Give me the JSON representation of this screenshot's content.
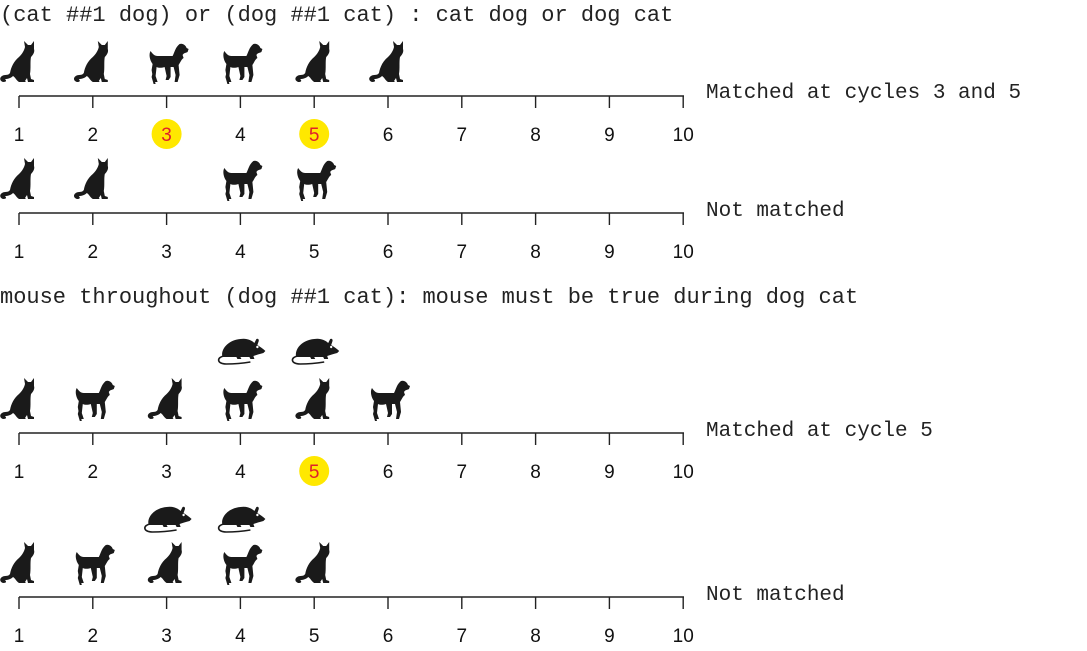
{
  "sections": [
    {
      "heading": "(cat ##1 dog) or (dog ##1 cat) : cat dog or dog cat",
      "timelines": [
        {
          "result": "Matched at cycles 3 and 5",
          "highlight": [
            3,
            5
          ],
          "rows": [
            [
              "cat",
              "cat",
              "dog",
              "dog",
              "cat",
              "cat",
              "",
              "",
              "",
              ""
            ]
          ]
        },
        {
          "result": "Not matched",
          "highlight": [],
          "rows": [
            [
              "cat",
              "cat",
              "",
              "dog",
              "dog",
              "",
              "",
              "",
              "",
              ""
            ]
          ]
        }
      ]
    },
    {
      "heading": "mouse throughout (dog ##1 cat): mouse must be true during dog cat",
      "timelines": [
        {
          "result": "Matched at cycle 5",
          "highlight": [
            5
          ],
          "rows": [
            [
              "",
              "",
              "",
              "mouse",
              "mouse",
              "",
              "",
              "",
              "",
              ""
            ],
            [
              "cat",
              "dog",
              "cat",
              "dog",
              "cat",
              "dog",
              "",
              "",
              "",
              ""
            ]
          ]
        },
        {
          "result": "Not matched",
          "highlight": [],
          "rows": [
            [
              "",
              "",
              "mouse",
              "mouse",
              "",
              "",
              "",
              "",
              "",
              ""
            ],
            [
              "cat",
              "dog",
              "cat",
              "dog",
              "cat",
              "",
              "",
              "",
              "",
              ""
            ]
          ]
        }
      ]
    }
  ],
  "ticks": [
    "1",
    "2",
    "3",
    "4",
    "5",
    "6",
    "7",
    "8",
    "9",
    "10"
  ],
  "icons": {
    "cat": "cat-icon",
    "dog": "dog-icon",
    "mouse": "mouse-icon"
  },
  "colors": {
    "highlight": "#ffe800",
    "highlight_text": "#e0202a",
    "silhouette": "#1a1a1a",
    "axis": "#222222"
  }
}
